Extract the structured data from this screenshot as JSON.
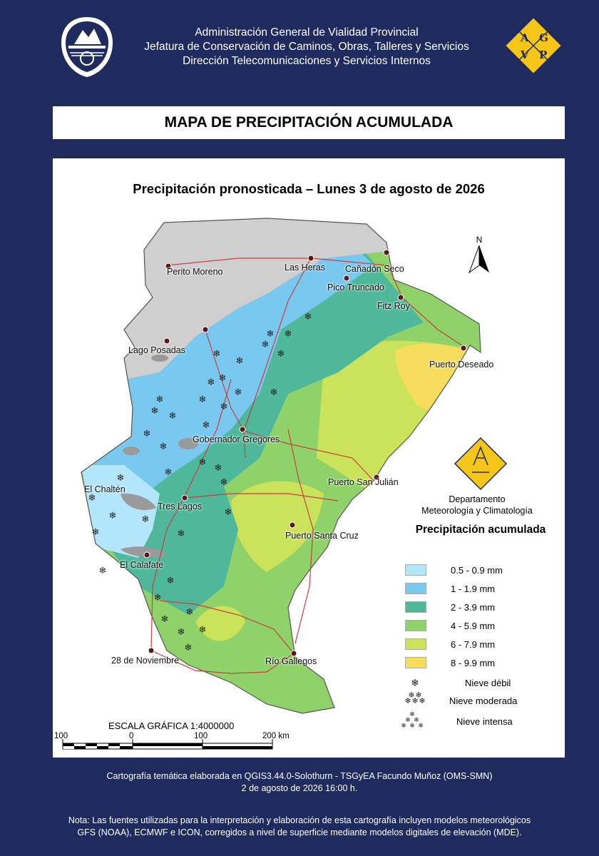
{
  "header": {
    "line1": "Administración General de Vialidad Provincial",
    "line2": "Jefatura de Conservación de Caminos, Obras, Talleres y Servicios",
    "line3": "Dirección Telecomunicaciones y Servicios Internos",
    "logo_letters": [
      "A",
      "G",
      "V",
      "P"
    ]
  },
  "title": "MAPA DE PRECIPITACIÓN ACUMULADA",
  "map": {
    "subtitle": "Precipitación pronosticada – Lunes 3 de agosto de 2026",
    "north_label": "N",
    "cities": [
      {
        "name": "Perito Moreno"
      },
      {
        "name": "Las Heras"
      },
      {
        "name": "Cañadón Seco"
      },
      {
        "name": "Pico Truncado"
      },
      {
        "name": "Fitz Roy"
      },
      {
        "name": "Lago Posadas"
      },
      {
        "name": "Puerto Deseado"
      },
      {
        "name": "Gobernador Gregores"
      },
      {
        "name": "Puerto San Julián"
      },
      {
        "name": "El Chaltén"
      },
      {
        "name": "Tres Lagos"
      },
      {
        "name": "Puerto Santa Cruz"
      },
      {
        "name": "El Calafate"
      },
      {
        "name": "28 de Noviembre"
      },
      {
        "name": "Río Gallegos"
      }
    ],
    "dept_logo_text": "DTySI AGVP",
    "dept_line1": "Departamento",
    "dept_line2": "Meteorología y Climatología",
    "legend_title": "Precipitación acumulada",
    "legend": [
      {
        "label": "0.5 - 0.9 mm",
        "color": "#b3e5fb"
      },
      {
        "label": "1 - 1.9 mm",
        "color": "#78c8f0"
      },
      {
        "label": "2 - 3.9 mm",
        "color": "#4fb89a"
      },
      {
        "label": "4 - 5.9 mm",
        "color": "#8fd26a"
      },
      {
        "label": "6 - 7.9 mm",
        "color": "#cbe35a"
      },
      {
        "label": "8 - 9.9 mm",
        "color": "#f8dc5e"
      }
    ],
    "snow_legend": [
      "Nieve débil",
      "Nieve moderada",
      "Nieve intensa"
    ],
    "scale_title": "ESCALA GRÁFICA 1:4000000",
    "scale_labels": [
      "100",
      "0",
      "100",
      "200 km"
    ]
  },
  "credits": {
    "line1": "Cartografía temática elaborada en QGIS3.44.0-Solothurn - TSGyEA Facundo Muñoz (OMS-SMN)",
    "line2": "2 de agosto de 2026 16:00 h."
  },
  "note": "Nota: Las fuentes utilizadas para la interpretación y elaboración de esta cartografía incluyen modelos meteorológicos GFS (NOAA), ECMWF e ICON, corregidos a nivel de superficie mediante modelos digitales de elevación (MDE)."
}
